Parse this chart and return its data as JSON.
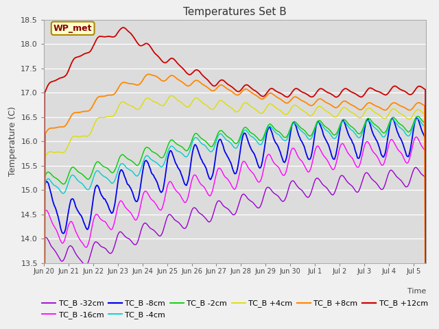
{
  "title": "Temperatures Set B",
  "xlabel": "Time",
  "ylabel": "Temperature (C)",
  "ylim": [
    13.5,
    18.5
  ],
  "series": [
    {
      "label": "TC_B -32cm",
      "color": "#9900CC",
      "lw": 1.0
    },
    {
      "label": "TC_B -16cm",
      "color": "#FF00FF",
      "lw": 1.0
    },
    {
      "label": "TC_B -8cm",
      "color": "#0000EE",
      "lw": 1.3
    },
    {
      "label": "TC_B -4cm",
      "color": "#00CCCC",
      "lw": 1.0
    },
    {
      "label": "TC_B -2cm",
      "color": "#00CC00",
      "lw": 1.0
    },
    {
      "label": "TC_B +4cm",
      "color": "#DDDD00",
      "lw": 1.0
    },
    {
      "label": "TC_B +8cm",
      "color": "#FF8800",
      "lw": 1.3
    },
    {
      "label": "TC_B +12cm",
      "color": "#CC0000",
      "lw": 1.3
    }
  ],
  "wp_met_label": "WP_met",
  "plot_bg": "#DCDCDC",
  "fig_bg": "#F0F0F0",
  "title_fontsize": 11,
  "legend_fontsize": 8,
  "tick_fontsize": 7,
  "ytick_fontsize": 8,
  "tick_color": "#444444",
  "ylabel_fontsize": 9,
  "grid_color": "#FFFFFF",
  "yticks": [
    13.5,
    14.0,
    14.5,
    15.0,
    15.5,
    16.0,
    16.5,
    17.0,
    17.5,
    18.0,
    18.5
  ],
  "tick_labels": [
    "Jun 20",
    "Jun 21",
    "Jun 22",
    "Jun 23",
    "Jun 24",
    "Jun 25",
    "Jun 26",
    "Jun 27",
    "Jun 28",
    "Jun 29",
    "Jun 30",
    "Jul 1",
    "Jul 2",
    "Jul 3",
    "Jul 4",
    "Jul 5"
  ],
  "tick_positions": [
    0,
    1,
    2,
    3,
    4,
    5,
    6,
    7,
    8,
    9,
    10,
    11,
    12,
    13,
    14,
    15
  ],
  "xlim": [
    0,
    15.5
  ]
}
